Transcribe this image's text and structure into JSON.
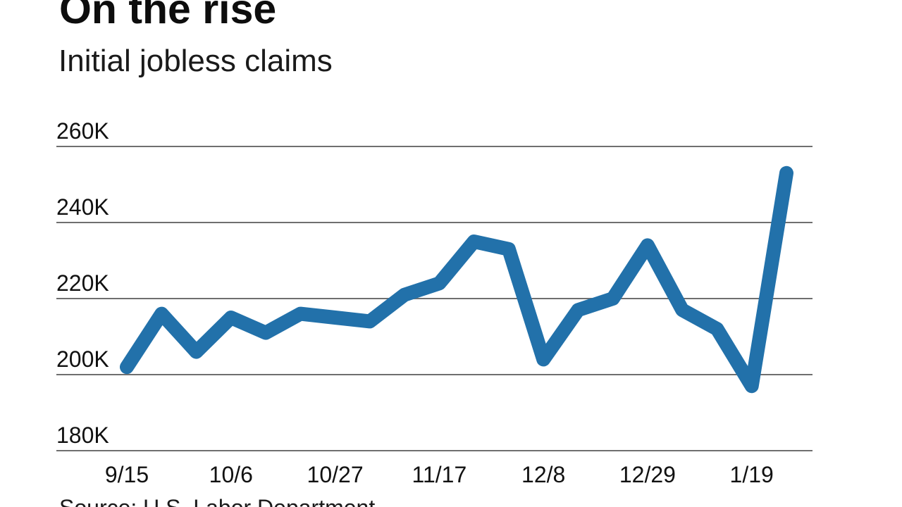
{
  "header": {
    "title": "On the rise",
    "subtitle": "Initial jobless claims"
  },
  "source_note": "Source: U.S. Labor Department",
  "chart_data": {
    "type": "line",
    "title": "On the rise",
    "subtitle": "Initial jobless claims",
    "x": [
      "9/15",
      "9/22",
      "9/29",
      "10/6",
      "10/13",
      "10/20",
      "10/27",
      "11/3",
      "11/10",
      "11/17",
      "11/24",
      "12/1",
      "12/8",
      "12/15",
      "12/22",
      "12/29",
      "1/5",
      "1/12",
      "1/19",
      "1/26"
    ],
    "series": [
      {
        "name": "Initial jobless claims",
        "values": [
          202,
          216,
          206,
          215,
          211,
          216,
          215,
          214,
          221,
          224,
          235,
          233,
          204,
          217,
          220,
          234,
          217,
          212,
          197,
          253
        ]
      }
    ],
    "unit": "K (thousands of claims)",
    "ylim": [
      180,
      260
    ],
    "y_ticks": [
      {
        "value": 260,
        "label": "260K"
      },
      {
        "value": 240,
        "label": "240K"
      },
      {
        "value": 220,
        "label": "220K"
      },
      {
        "value": 200,
        "label": "200K"
      },
      {
        "value": 180,
        "label": "180K"
      }
    ],
    "x_ticks": [
      {
        "index": 0,
        "label": "9/15"
      },
      {
        "index": 3,
        "label": "10/6"
      },
      {
        "index": 6,
        "label": "10/27"
      },
      {
        "index": 9,
        "label": "11/17"
      },
      {
        "index": 12,
        "label": "12/8"
      },
      {
        "index": 15,
        "label": "12/29"
      },
      {
        "index": 18,
        "label": "1/19"
      }
    ],
    "legend": "none",
    "grid": "horizontal",
    "line_color": "#2271aa",
    "grid_color": "#6f6f6f",
    "text_color": "#111111",
    "source": "Source: U.S. Labor Department"
  }
}
